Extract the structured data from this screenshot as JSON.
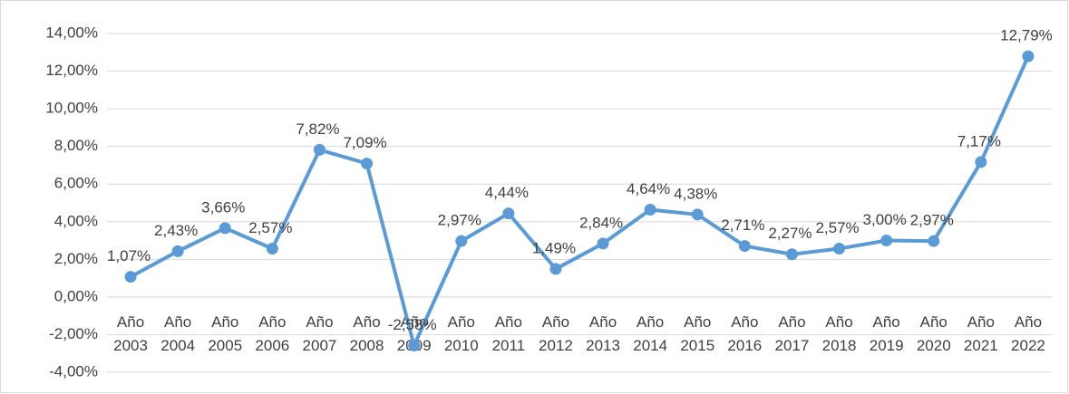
{
  "chart_data": {
    "type": "line",
    "categories": [
      "Año 2003",
      "Año 2004",
      "Año 2005",
      "Año 2006",
      "Año 2007",
      "Año 2008",
      "Año 2009",
      "Año 2010",
      "Año 2011",
      "Año 2012",
      "Año 2013",
      "Año 2014",
      "Año 2015",
      "Año 2016",
      "Año 2017",
      "Año 2018",
      "Año 2019",
      "Año 2020",
      "Año 2021",
      "Año 2022"
    ],
    "values": [
      1.07,
      2.43,
      3.66,
      2.57,
      7.82,
      7.09,
      -2.58,
      2.97,
      4.44,
      1.49,
      2.84,
      4.64,
      4.38,
      2.71,
      2.27,
      2.57,
      3.0,
      2.97,
      7.17,
      12.79
    ],
    "value_labels": [
      "1,07%",
      "2,43%",
      "3,66%",
      "2,57%",
      "7,82%",
      "7,09%",
      "-2,58%",
      "2,97%",
      "4,44%",
      "1,49%",
      "2,84%",
      "4,64%",
      "4,38%",
      "2,71%",
      "2,27%",
      "2,57%",
      "3,00%",
      "2,97%",
      "7,17%",
      "12,79%"
    ],
    "color": "#5b9bd5",
    "ylim": [
      -4,
      14
    ],
    "yticks": [
      {
        "value": -4,
        "label": "-4,00%"
      },
      {
        "value": -2,
        "label": "-2,00%"
      },
      {
        "value": 0,
        "label": "0,00%"
      },
      {
        "value": 2,
        "label": "2,00%"
      },
      {
        "value": 4,
        "label": "4,00%"
      },
      {
        "value": 6,
        "label": "6,00%"
      },
      {
        "value": 8,
        "label": "8,00%"
      },
      {
        "value": 10,
        "label": "10,00%"
      },
      {
        "value": 12,
        "label": "12,00%"
      },
      {
        "value": 14,
        "label": "14,00%"
      }
    ],
    "grid": true
  }
}
